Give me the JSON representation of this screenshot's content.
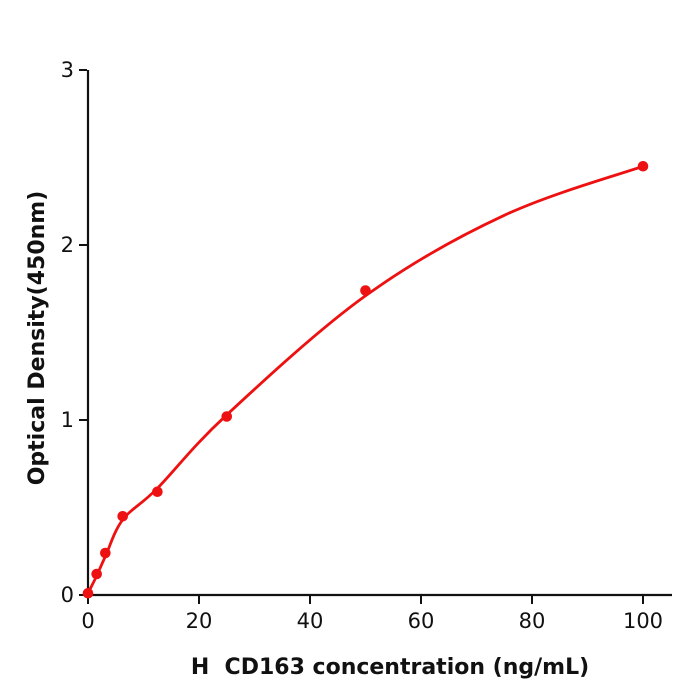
{
  "chart_data": {
    "type": "scatter",
    "title": "",
    "xlabel": "H  CD163 concentration (ng/mL)",
    "ylabel": "Optical Density(450nm)",
    "x": [
      0,
      1.56,
      3.125,
      6.25,
      12.5,
      25,
      50,
      100
    ],
    "y": [
      0.01,
      0.12,
      0.24,
      0.45,
      0.59,
      1.02,
      1.74,
      2.45
    ],
    "fit_curve_points": [
      [
        0,
        0.01
      ],
      [
        1.56,
        0.11
      ],
      [
        3.125,
        0.22
      ],
      [
        6.25,
        0.43
      ],
      [
        12.5,
        0.61
      ],
      [
        25,
        1.03
      ],
      [
        50,
        1.71
      ],
      [
        75,
        2.17
      ],
      [
        100,
        2.45
      ]
    ],
    "x_ticks": [
      0,
      20,
      40,
      60,
      80,
      100
    ],
    "y_ticks": [
      0,
      1,
      2,
      3
    ],
    "xlim": [
      0,
      105
    ],
    "ylim": [
      0,
      3
    ],
    "grid": false,
    "legend": "none",
    "colors": {
      "marker": "#ee1111",
      "line": "#ee1111",
      "axis": "#111111",
      "background": "#ffffff"
    }
  }
}
